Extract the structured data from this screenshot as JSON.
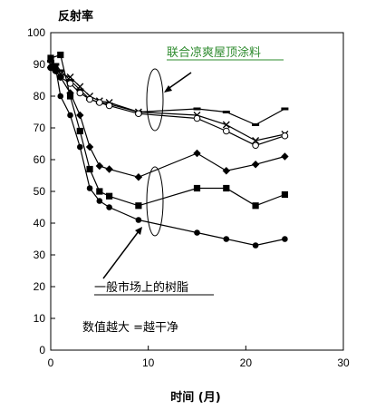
{
  "chart_data": {
    "type": "line",
    "ylabel": "反射率",
    "xlabel": "时间 (月)",
    "xlim": [
      0,
      30
    ],
    "ylim": [
      0,
      100
    ],
    "x_ticks": [
      0,
      10,
      20,
      30
    ],
    "y_ticks": [
      0,
      10,
      20,
      30,
      40,
      50,
      60,
      70,
      80,
      90,
      100
    ],
    "grid": false,
    "series": [
      {
        "marker": "dash",
        "color": "#000000",
        "x": [
          0,
          0.5,
          1,
          2,
          3,
          4,
          5,
          6,
          9,
          15,
          18,
          21,
          24
        ],
        "y": [
          91,
          90,
          88,
          85,
          82,
          79,
          78,
          77.5,
          75,
          76,
          75,
          71,
          76
        ]
      },
      {
        "marker": "x",
        "color": "#000000",
        "x": [
          0,
          0.5,
          1,
          2,
          3,
          4,
          5,
          6,
          9,
          15,
          18,
          21,
          24
        ],
        "y": [
          90,
          89,
          87,
          86,
          83,
          80,
          78.5,
          78,
          75,
          74,
          71,
          66,
          68
        ]
      },
      {
        "marker": "circle-open",
        "color": "#000000",
        "x": [
          0,
          0.5,
          1,
          2,
          3,
          4,
          5,
          6,
          9,
          15,
          18,
          21,
          24
        ],
        "y": [
          89,
          88,
          86,
          84,
          81,
          79,
          78,
          77,
          74.5,
          73,
          69,
          64.5,
          67.5
        ]
      },
      {
        "marker": "diamond",
        "color": "#000000",
        "x": [
          0,
          0.5,
          1,
          2,
          3,
          4,
          5,
          6,
          9,
          15,
          18,
          21,
          24
        ],
        "y": [
          89,
          88,
          86,
          81,
          74,
          64,
          58,
          57,
          54.5,
          62,
          56.5,
          58.5,
          61
        ]
      },
      {
        "marker": "square",
        "color": "#000000",
        "x": [
          0,
          1,
          2,
          3,
          4,
          5,
          6,
          9,
          15,
          18,
          21,
          24
        ],
        "y": [
          92,
          93,
          80,
          69,
          57,
          50,
          48.5,
          45.5,
          51,
          51,
          45.5,
          49
        ]
      },
      {
        "marker": "circle",
        "color": "#000000",
        "x": [
          0,
          0.5,
          1,
          2,
          3,
          4,
          5,
          6,
          9,
          15,
          18,
          21,
          24
        ],
        "y": [
          92,
          89,
          80,
          74,
          64,
          51,
          47,
          45,
          41,
          37,
          35,
          33,
          35
        ]
      }
    ],
    "annotations": [
      {
        "text": "联合凉爽屋顶涂料",
        "color": "#2e8b2e"
      },
      {
        "text": "一般市场上的树脂",
        "color": "#000000"
      },
      {
        "text": "数值越大 =越干净",
        "color": "#000000"
      }
    ]
  }
}
